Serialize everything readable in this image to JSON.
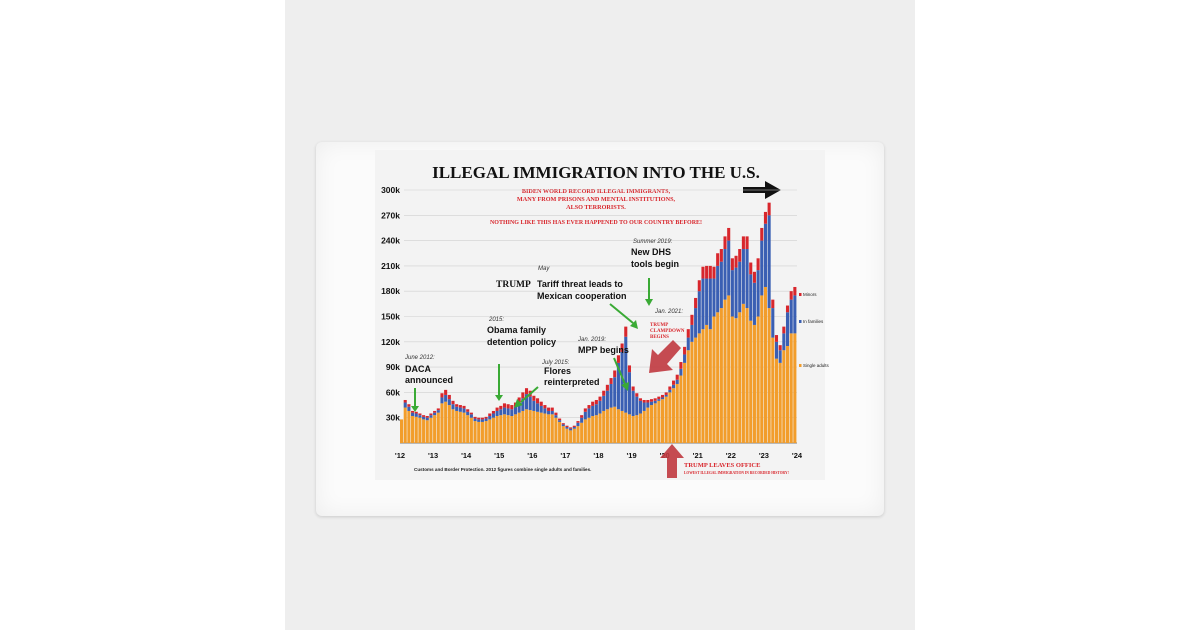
{
  "chart_data": {
    "type": "bar",
    "title": "ILLEGAL IMMIGRATION INTO THE U.S.",
    "subtitle_lines": [
      "BIDEN WORLD RECORD ILLEGAL IMMIGRANTS,",
      "MANY FROM PRISONS AND MENTAL INSTITUTIONS,",
      "ALSO TERRORISTS."
    ],
    "subtitle2": "NOTHING LIKE THIS HAS EVER HAPPENED TO OUR COUNTRY BEFORE!",
    "source_note": "Customs and Border Protection. 2012 figures combine single adults and families.",
    "ylim": [
      0,
      300000
    ],
    "y_ticks": [
      "300k",
      "270k",
      "240k",
      "210k",
      "180k",
      "150k",
      "120k",
      "90k",
      "60k",
      "30k"
    ],
    "x_ticks": [
      "'12",
      "'13",
      "'14",
      "'15",
      "'16",
      "'17",
      "'18",
      "'19",
      "'20",
      "'21",
      "'22",
      "'23",
      "'24"
    ],
    "legend": [
      "Minors",
      "In families",
      "Single adults"
    ],
    "series": [
      {
        "name": "Single adults",
        "color": "#f29d2b",
        "values": [
          28000,
          42000,
          38000,
          32000,
          31000,
          30000,
          28000,
          27000,
          30000,
          33000,
          36000,
          47000,
          49000,
          45000,
          40000,
          38000,
          37000,
          36000,
          33000,
          30000,
          26000,
          25000,
          25000,
          26000,
          28000,
          30000,
          32000,
          33000,
          34000,
          33000,
          32000,
          34000,
          36000,
          38000,
          40000,
          39000,
          38000,
          37000,
          36000,
          35000,
          34000,
          34000,
          30000,
          25000,
          20000,
          17000,
          15000,
          17000,
          20000,
          24000,
          28000,
          30000,
          32000,
          33000,
          35000,
          38000,
          40000,
          42000,
          43000,
          40000,
          38000,
          36000,
          34000,
          32000,
          33000,
          35000,
          38000,
          42000,
          45000,
          47000,
          50000,
          52000,
          55000,
          60000,
          65000,
          70000,
          80000,
          95000,
          110000,
          120000,
          125000,
          130000,
          135000,
          140000,
          135000,
          150000,
          155000,
          160000,
          170000,
          175000,
          150000,
          148000,
          155000,
          165000,
          160000,
          145000,
          140000,
          150000,
          175000,
          185000,
          160000,
          125000,
          100000,
          95000,
          110000,
          115000,
          130000,
          130000
        ]
      },
      {
        "name": "In families",
        "color": "#3a5fb3",
        "values": [
          0,
          6000,
          5000,
          4000,
          4000,
          3000,
          3000,
          3000,
          3000,
          3000,
          3000,
          7000,
          8000,
          7000,
          6000,
          5000,
          5000,
          5000,
          4000,
          4000,
          3000,
          3000,
          3000,
          3000,
          4000,
          5000,
          6000,
          7000,
          8000,
          8000,
          8000,
          9000,
          12000,
          15000,
          18000,
          16000,
          12000,
          10000,
          8000,
          6000,
          4000,
          4000,
          3000,
          2000,
          2000,
          2000,
          2000,
          2000,
          4000,
          6000,
          9000,
          11000,
          12000,
          13000,
          15000,
          18000,
          22000,
          28000,
          35000,
          55000,
          70000,
          90000,
          50000,
          30000,
          22000,
          15000,
          10000,
          6000,
          4000,
          3000,
          2000,
          2000,
          2000,
          3000,
          4000,
          5000,
          8000,
          10000,
          15000,
          20000,
          35000,
          50000,
          60000,
          55000,
          60000,
          45000,
          55000,
          55000,
          60000,
          65000,
          55000,
          60000,
          60000,
          65000,
          70000,
          55000,
          50000,
          55000,
          65000,
          75000,
          110000,
          35000,
          20000,
          15000,
          20000,
          40000,
          40000,
          45000
        ]
      },
      {
        "name": "Minors",
        "color": "#d8262c",
        "values": [
          0,
          3000,
          3000,
          2000,
          2000,
          2000,
          2000,
          2000,
          2000,
          2000,
          2000,
          5000,
          6000,
          5000,
          4000,
          3000,
          3000,
          3000,
          3000,
          2000,
          2000,
          2000,
          2000,
          2000,
          3000,
          3000,
          4000,
          4000,
          5000,
          5000,
          5000,
          5000,
          6000,
          7000,
          7000,
          7000,
          6000,
          6000,
          5000,
          4000,
          4000,
          4000,
          3000,
          2000,
          1500,
          1500,
          1500,
          1500,
          2000,
          3000,
          4000,
          4000,
          5000,
          5000,
          5000,
          6000,
          7000,
          7000,
          8000,
          9000,
          10000,
          12000,
          8000,
          5000,
          4000,
          3000,
          3000,
          3000,
          3000,
          3000,
          3000,
          3000,
          3000,
          4000,
          5000,
          6000,
          8000,
          9000,
          10000,
          12000,
          12000,
          13000,
          14000,
          15000,
          15000,
          14000,
          15000,
          15000,
          15000,
          15000,
          14000,
          14000,
          15000,
          15000,
          15000,
          14000,
          13000,
          14000,
          15000,
          14000,
          15000,
          10000,
          8000,
          6000,
          8000,
          8000,
          10000,
          10000
        ]
      }
    ],
    "annotations": [
      {
        "kicker": "June 2012:",
        "text": "DACA\nannounced"
      },
      {
        "kicker": "2015:",
        "text": "Obama family\ndetention policy"
      },
      {
        "kicker": "July 2015:",
        "text": "Flores\nreinterpreted"
      },
      {
        "kicker": "May",
        "text": "Tariff threat leads to\nMexican cooperation",
        "prefix": "TRUMP"
      },
      {
        "kicker": "Summer 2019:",
        "text": "New DHS\ntools begin"
      },
      {
        "kicker": "Jan. 2019:",
        "text": "MPP begins"
      },
      {
        "kicker": "Jan. 2021:",
        "text": ""
      },
      {
        "kicker": "",
        "text": "TRUMP\nCLAMPDOWN\nBEGINS"
      },
      {
        "kicker": "",
        "text": "TRUMP LEAVES OFFICE",
        "sub": "LOWEST ILLEGAL IMMIGRATION IN RECORDED HISTORY!"
      }
    ]
  }
}
